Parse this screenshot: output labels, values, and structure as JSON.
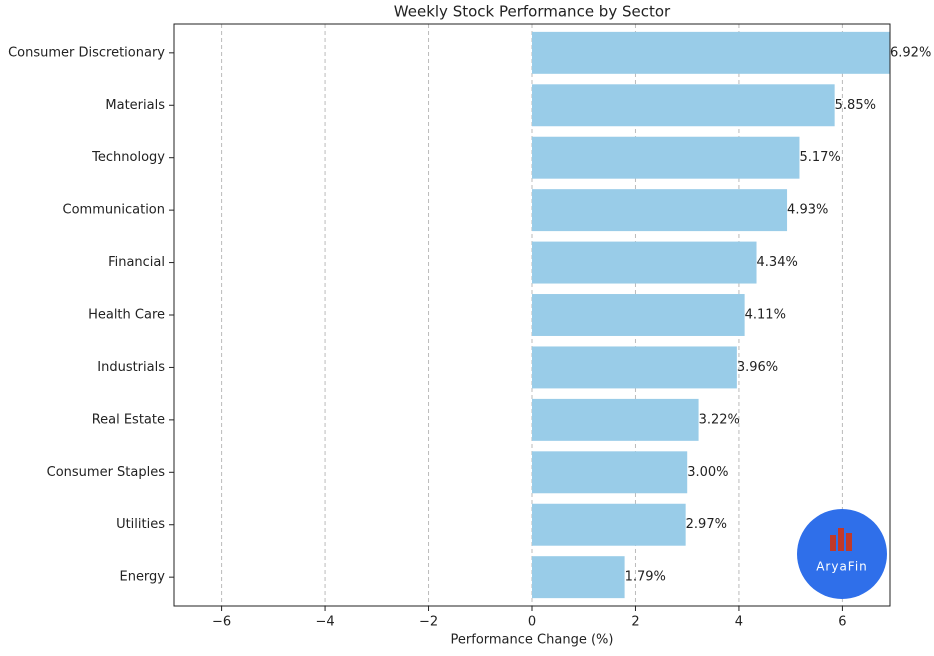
{
  "chart_data": {
    "type": "barh",
    "title": "Weekly Stock Performance by Sector",
    "x_label": "Performance Change (%)",
    "categories": [
      "Consumer Discretionary",
      "Materials",
      "Technology",
      "Communication",
      "Financial",
      "Health Care",
      "Industrials",
      "Real Estate",
      "Consumer Staples",
      "Utilities",
      "Energy"
    ],
    "values": [
      6.92,
      5.85,
      5.17,
      4.93,
      4.34,
      4.11,
      3.96,
      3.22,
      3.0,
      2.97,
      1.79
    ],
    "value_labels": [
      "6.92%",
      "5.85%",
      "5.17%",
      "4.93%",
      "4.34%",
      "4.11%",
      "3.96%",
      "3.22%",
      "3.00%",
      "2.97%",
      "1.79%"
    ],
    "color": "#99cce8",
    "xlim": [
      -6.92,
      6.92
    ],
    "xticks": [
      {
        "value": -6,
        "label": "−6"
      },
      {
        "value": -4,
        "label": "−4"
      },
      {
        "value": -2,
        "label": "−2"
      },
      0,
      2,
      4,
      6
    ],
    "grid": true
  },
  "logo": "AryaFin"
}
